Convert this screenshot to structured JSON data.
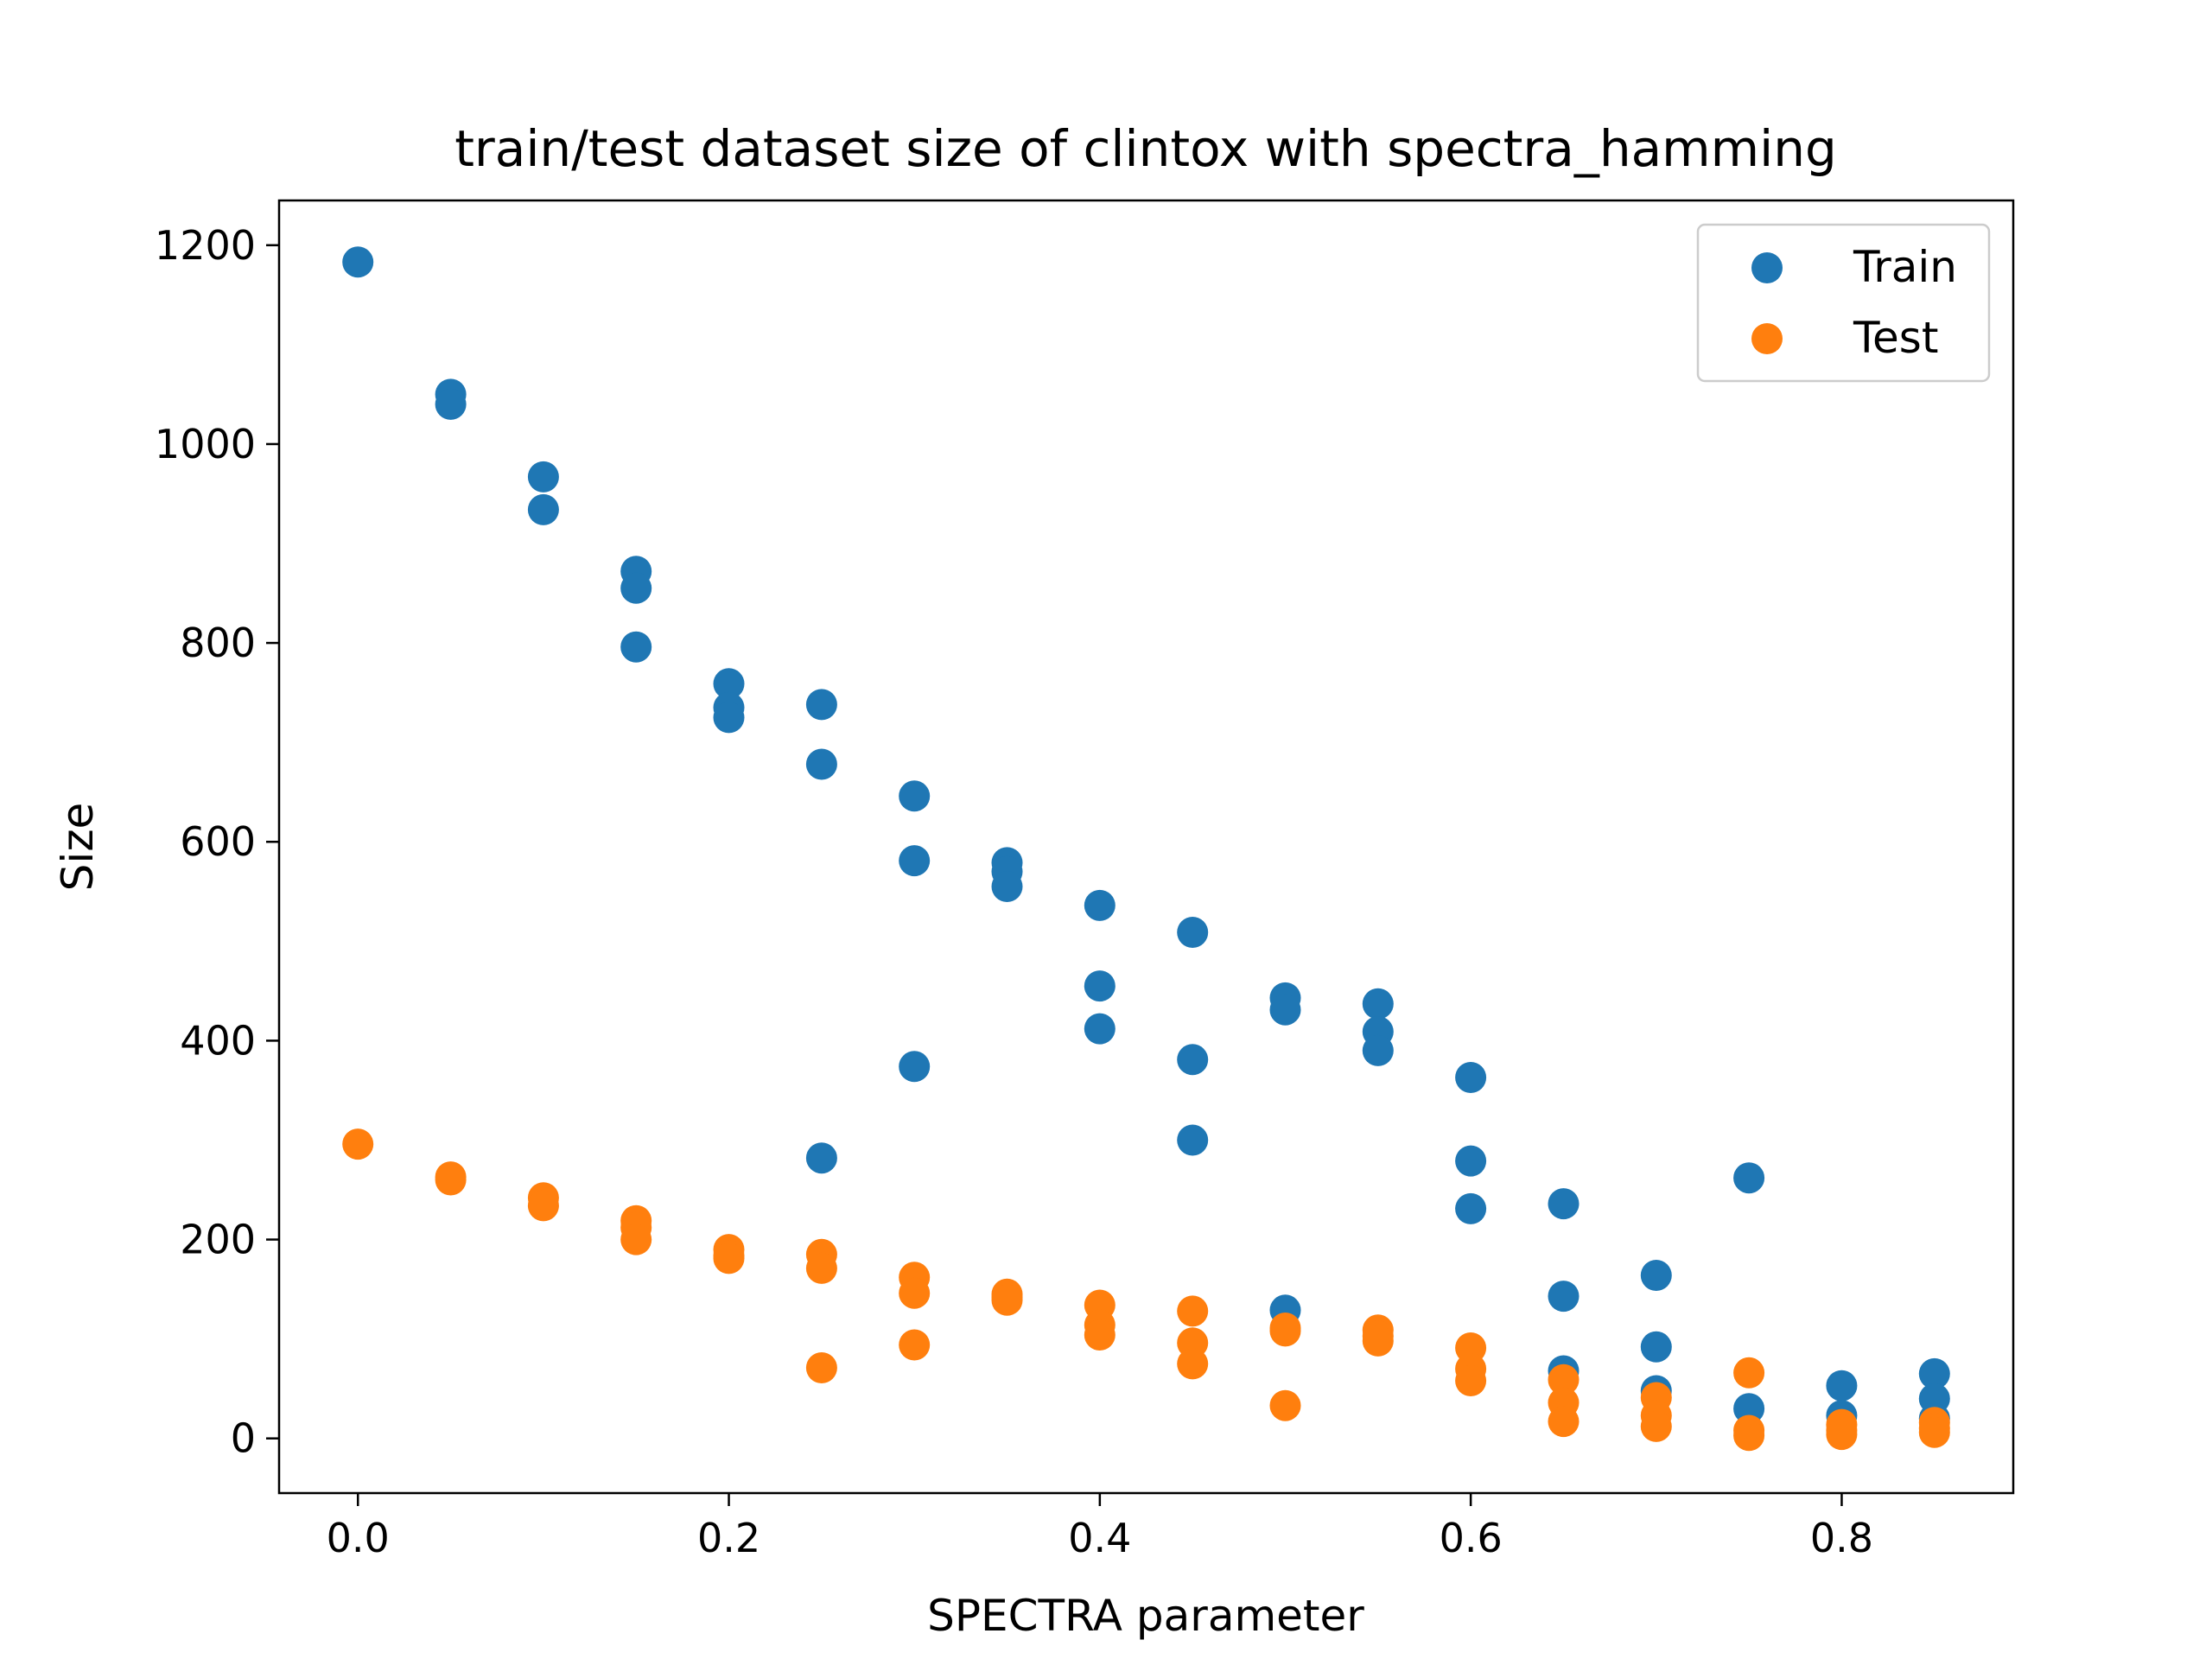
{
  "chart_data": {
    "type": "scatter",
    "title": "train/test dataset size of clintox with spectra_hamming",
    "xlabel": "SPECTRA parameter",
    "ylabel": "Size",
    "xlim": [
      -0.0425,
      0.8925
    ],
    "ylim": [
      -55,
      1245
    ],
    "xticks": [
      0.0,
      0.2,
      0.4,
      0.6,
      0.8
    ],
    "xtick_labels": [
      "0.0",
      "0.2",
      "0.4",
      "0.6",
      "0.8"
    ],
    "yticks": [
      0,
      200,
      400,
      600,
      800,
      1000,
      1200
    ],
    "ytick_labels": [
      "0",
      "200",
      "400",
      "600",
      "800",
      "1000",
      "1200"
    ],
    "grid": false,
    "legend_position": "top-right",
    "series": [
      {
        "name": "Train",
        "color": "#1f77b4",
        "points": [
          [
            0.0,
            1183
          ],
          [
            0.05,
            1050
          ],
          [
            0.05,
            1040
          ],
          [
            0.1,
            967
          ],
          [
            0.1,
            934
          ],
          [
            0.15,
            872
          ],
          [
            0.15,
            855
          ],
          [
            0.15,
            796
          ],
          [
            0.2,
            759
          ],
          [
            0.2,
            735
          ],
          [
            0.2,
            725
          ],
          [
            0.25,
            738
          ],
          [
            0.25,
            678
          ],
          [
            0.25,
            282
          ],
          [
            0.3,
            646
          ],
          [
            0.3,
            581
          ],
          [
            0.3,
            374
          ],
          [
            0.35,
            579
          ],
          [
            0.35,
            570
          ],
          [
            0.35,
            555
          ],
          [
            0.4,
            536
          ],
          [
            0.4,
            455
          ],
          [
            0.4,
            412
          ],
          [
            0.45,
            509
          ],
          [
            0.45,
            381
          ],
          [
            0.45,
            300
          ],
          [
            0.5,
            443
          ],
          [
            0.5,
            431
          ],
          [
            0.5,
            129
          ],
          [
            0.55,
            437
          ],
          [
            0.55,
            409
          ],
          [
            0.55,
            390
          ],
          [
            0.6,
            363
          ],
          [
            0.6,
            279
          ],
          [
            0.6,
            231
          ],
          [
            0.65,
            236
          ],
          [
            0.65,
            143
          ],
          [
            0.65,
            68
          ],
          [
            0.7,
            164
          ],
          [
            0.7,
            92
          ],
          [
            0.7,
            48
          ],
          [
            0.75,
            262
          ],
          [
            0.75,
            30
          ],
          [
            0.8,
            53
          ],
          [
            0.8,
            23
          ],
          [
            0.85,
            65
          ],
          [
            0.85,
            40
          ],
          [
            0.85,
            20
          ]
        ]
      },
      {
        "name": "Test",
        "color": "#ff7f0e",
        "points": [
          [
            0.0,
            296
          ],
          [
            0.05,
            263
          ],
          [
            0.05,
            260
          ],
          [
            0.1,
            242
          ],
          [
            0.1,
            234
          ],
          [
            0.15,
            219
          ],
          [
            0.15,
            212
          ],
          [
            0.15,
            200
          ],
          [
            0.2,
            190
          ],
          [
            0.2,
            184
          ],
          [
            0.2,
            181
          ],
          [
            0.25,
            185
          ],
          [
            0.25,
            171
          ],
          [
            0.25,
            71
          ],
          [
            0.3,
            162
          ],
          [
            0.3,
            146
          ],
          [
            0.3,
            94
          ],
          [
            0.35,
            145
          ],
          [
            0.35,
            142
          ],
          [
            0.35,
            139
          ],
          [
            0.4,
            134
          ],
          [
            0.4,
            114
          ],
          [
            0.4,
            104
          ],
          [
            0.45,
            128
          ],
          [
            0.45,
            96
          ],
          [
            0.45,
            75
          ],
          [
            0.5,
            111
          ],
          [
            0.5,
            108
          ],
          [
            0.5,
            33
          ],
          [
            0.55,
            109
          ],
          [
            0.55,
            103
          ],
          [
            0.55,
            98
          ],
          [
            0.6,
            91
          ],
          [
            0.6,
            70
          ],
          [
            0.6,
            58
          ],
          [
            0.65,
            59
          ],
          [
            0.65,
            36
          ],
          [
            0.65,
            17
          ],
          [
            0.7,
            41
          ],
          [
            0.7,
            23
          ],
          [
            0.7,
            12
          ],
          [
            0.75,
            66
          ],
          [
            0.75,
            8
          ],
          [
            0.75,
            3
          ],
          [
            0.8,
            14
          ],
          [
            0.8,
            8
          ],
          [
            0.8,
            4
          ],
          [
            0.85,
            16
          ],
          [
            0.85,
            10
          ],
          [
            0.85,
            6
          ]
        ]
      }
    ]
  }
}
